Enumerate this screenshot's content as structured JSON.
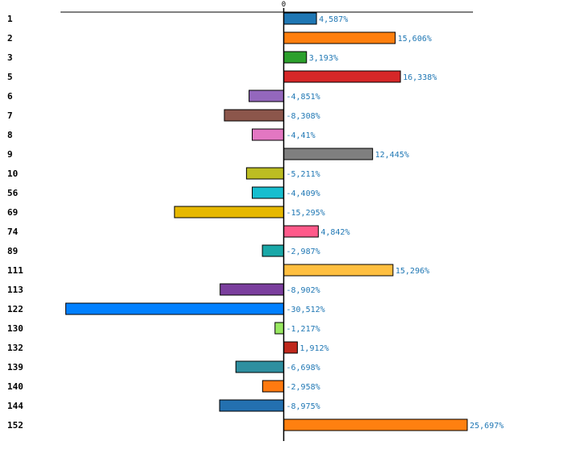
{
  "chart_data": {
    "type": "bar",
    "orientation": "horizontal",
    "title": "",
    "xlabel": "",
    "ylabel": "",
    "zero_tick_label": "0",
    "xlim": [
      -31.0,
      26.5
    ],
    "categories": [
      "1",
      "2",
      "3",
      "5",
      "6",
      "7",
      "8",
      "9",
      "10",
      "56",
      "69",
      "74",
      "89",
      "111",
      "113",
      "122",
      "130",
      "132",
      "139",
      "140",
      "144",
      "152"
    ],
    "values": [
      4.587,
      15.606,
      3.193,
      16.338,
      -4.851,
      -8.308,
      -4.41,
      12.445,
      -5.211,
      -4.409,
      -15.295,
      4.842,
      -2.987,
      15.296,
      -8.902,
      -30.512,
      -1.217,
      1.912,
      -6.698,
      -2.958,
      -8.975,
      25.697
    ],
    "value_labels": [
      "4,587%",
      "15,606%",
      "3,193%",
      "16,338%",
      "-4,851%",
      "-8,308%",
      "-4,41%",
      "12,445%",
      "-5,211%",
      "-4,409%",
      "-15,295%",
      "4,842%",
      "-2,987%",
      "15,296%",
      "-8,902%",
      "-30,512%",
      "-1,217%",
      "1,912%",
      "-6,698%",
      "-2,958%",
      "-8,975%",
      "25,697%"
    ],
    "colors": [
      "#1f77b4",
      "#ff7f0e",
      "#2ca02c",
      "#d62728",
      "#9467bd",
      "#8c564b",
      "#e377c2",
      "#7f7f7f",
      "#bcbd22",
      "#17becf",
      "#e6b800",
      "#ff5a8a",
      "#1aa8a8",
      "#ffbf40",
      "#7b3f9e",
      "#0080ff",
      "#98e860",
      "#c0281c",
      "#2e8fa0",
      "#ff7a10",
      "#2370b0",
      "#ff8010"
    ],
    "label_color": "#1f77b4"
  }
}
